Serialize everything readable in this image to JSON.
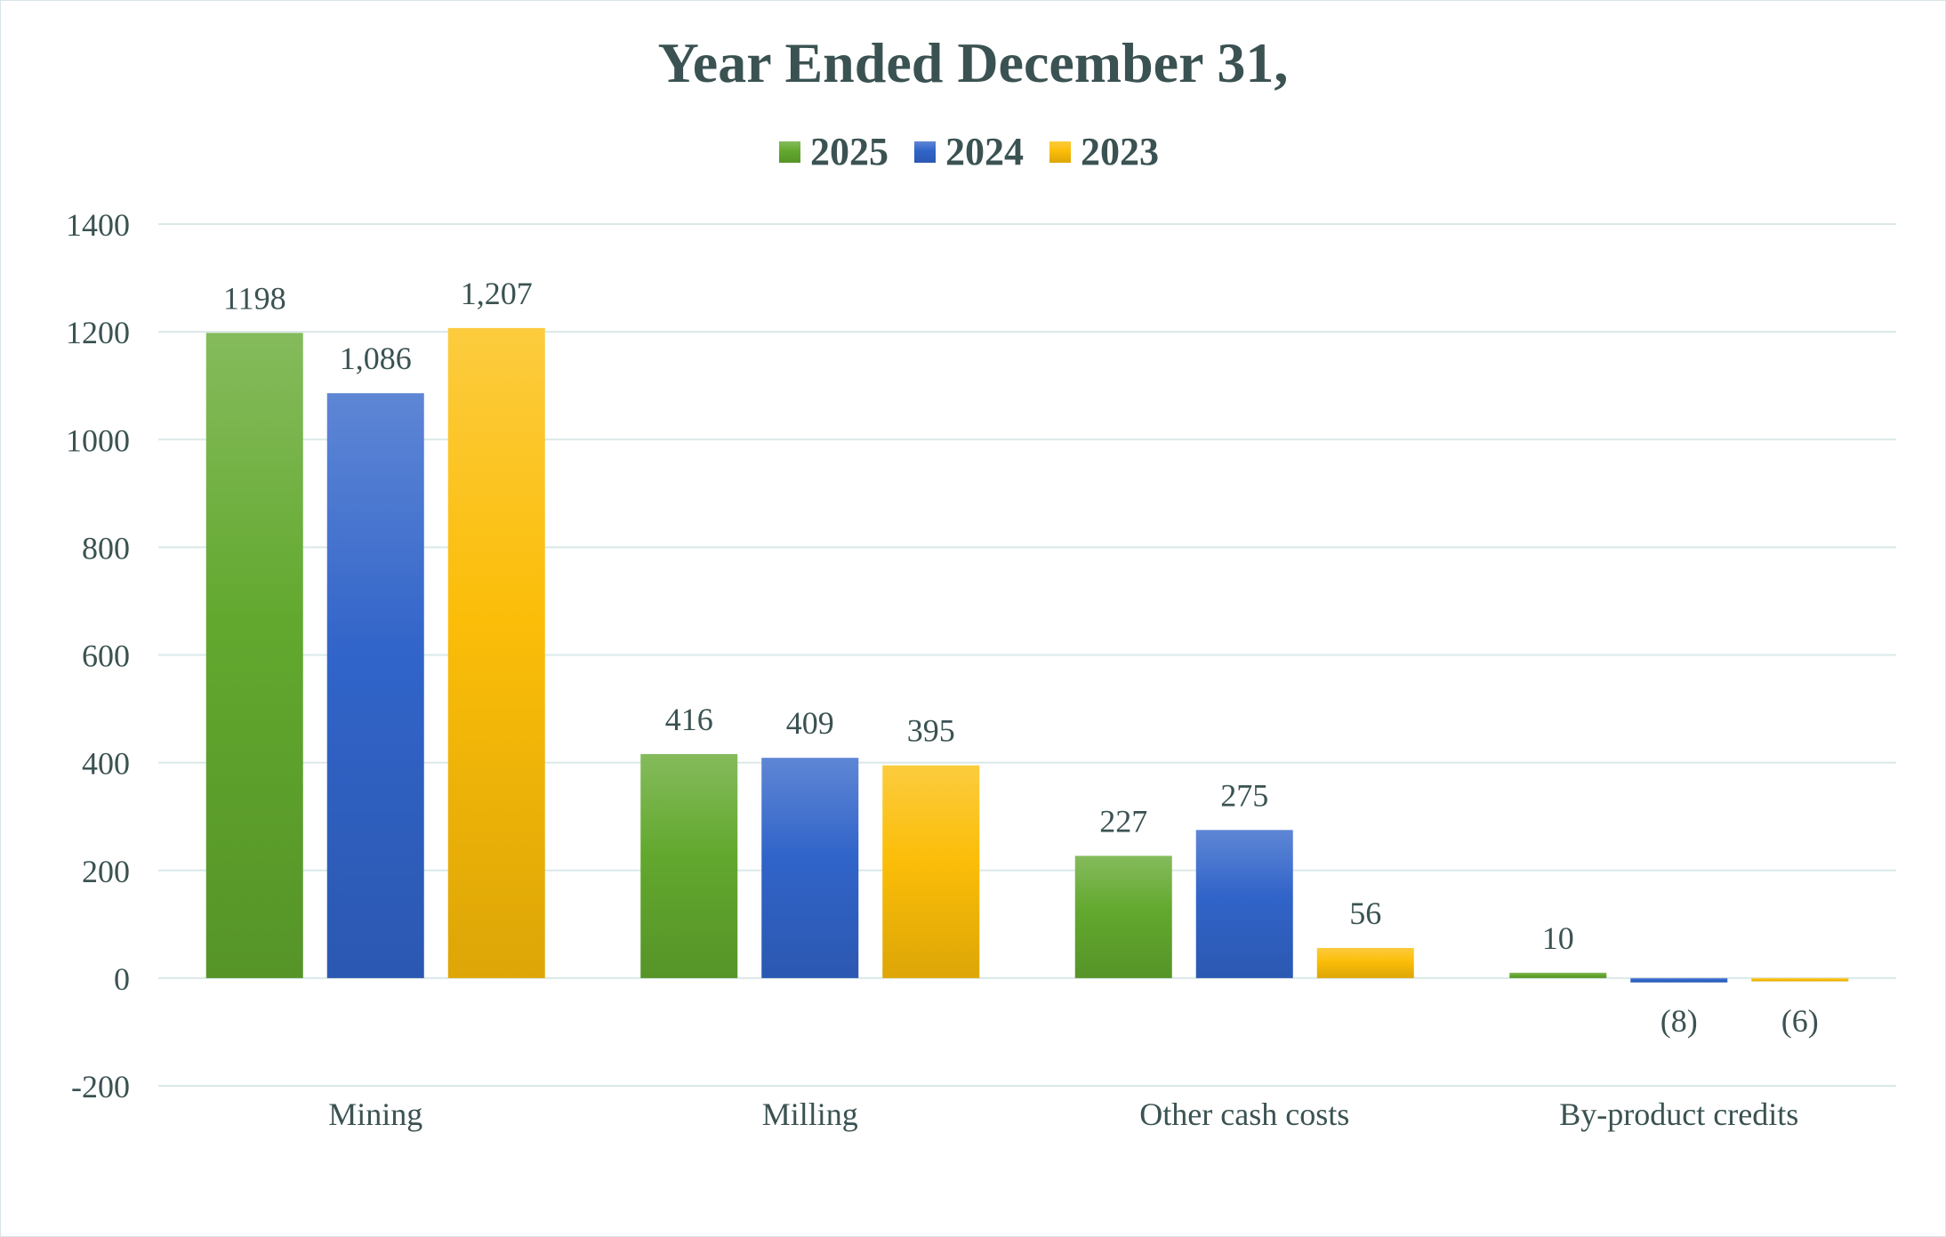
{
  "chart_data": {
    "type": "bar",
    "title": "Year Ended December 31,",
    "xlabel": "",
    "ylabel": "",
    "ylim": [
      -200,
      1400
    ],
    "yticks": [
      -200,
      0,
      200,
      400,
      600,
      800,
      1000,
      1200,
      1400
    ],
    "grid": true,
    "legend_position": "top-center",
    "categories": [
      "Mining",
      "Milling",
      "Other cash costs",
      "By-product credits"
    ],
    "series": [
      {
        "name": "2025",
        "color": "#62a82e",
        "values": [
          1198,
          416,
          227,
          10
        ],
        "labels": [
          "1198",
          "416",
          "227",
          "10"
        ]
      },
      {
        "name": "2024",
        "color": "#3164c9",
        "values": [
          1086,
          409,
          275,
          -8
        ],
        "labels": [
          "1,086",
          "409",
          "275",
          "(8)"
        ]
      },
      {
        "name": "2023",
        "color": "#fbbd08",
        "values": [
          1207,
          395,
          56,
          -6
        ],
        "labels": [
          "1,207",
          "395",
          "56",
          "(6)"
        ]
      }
    ]
  }
}
